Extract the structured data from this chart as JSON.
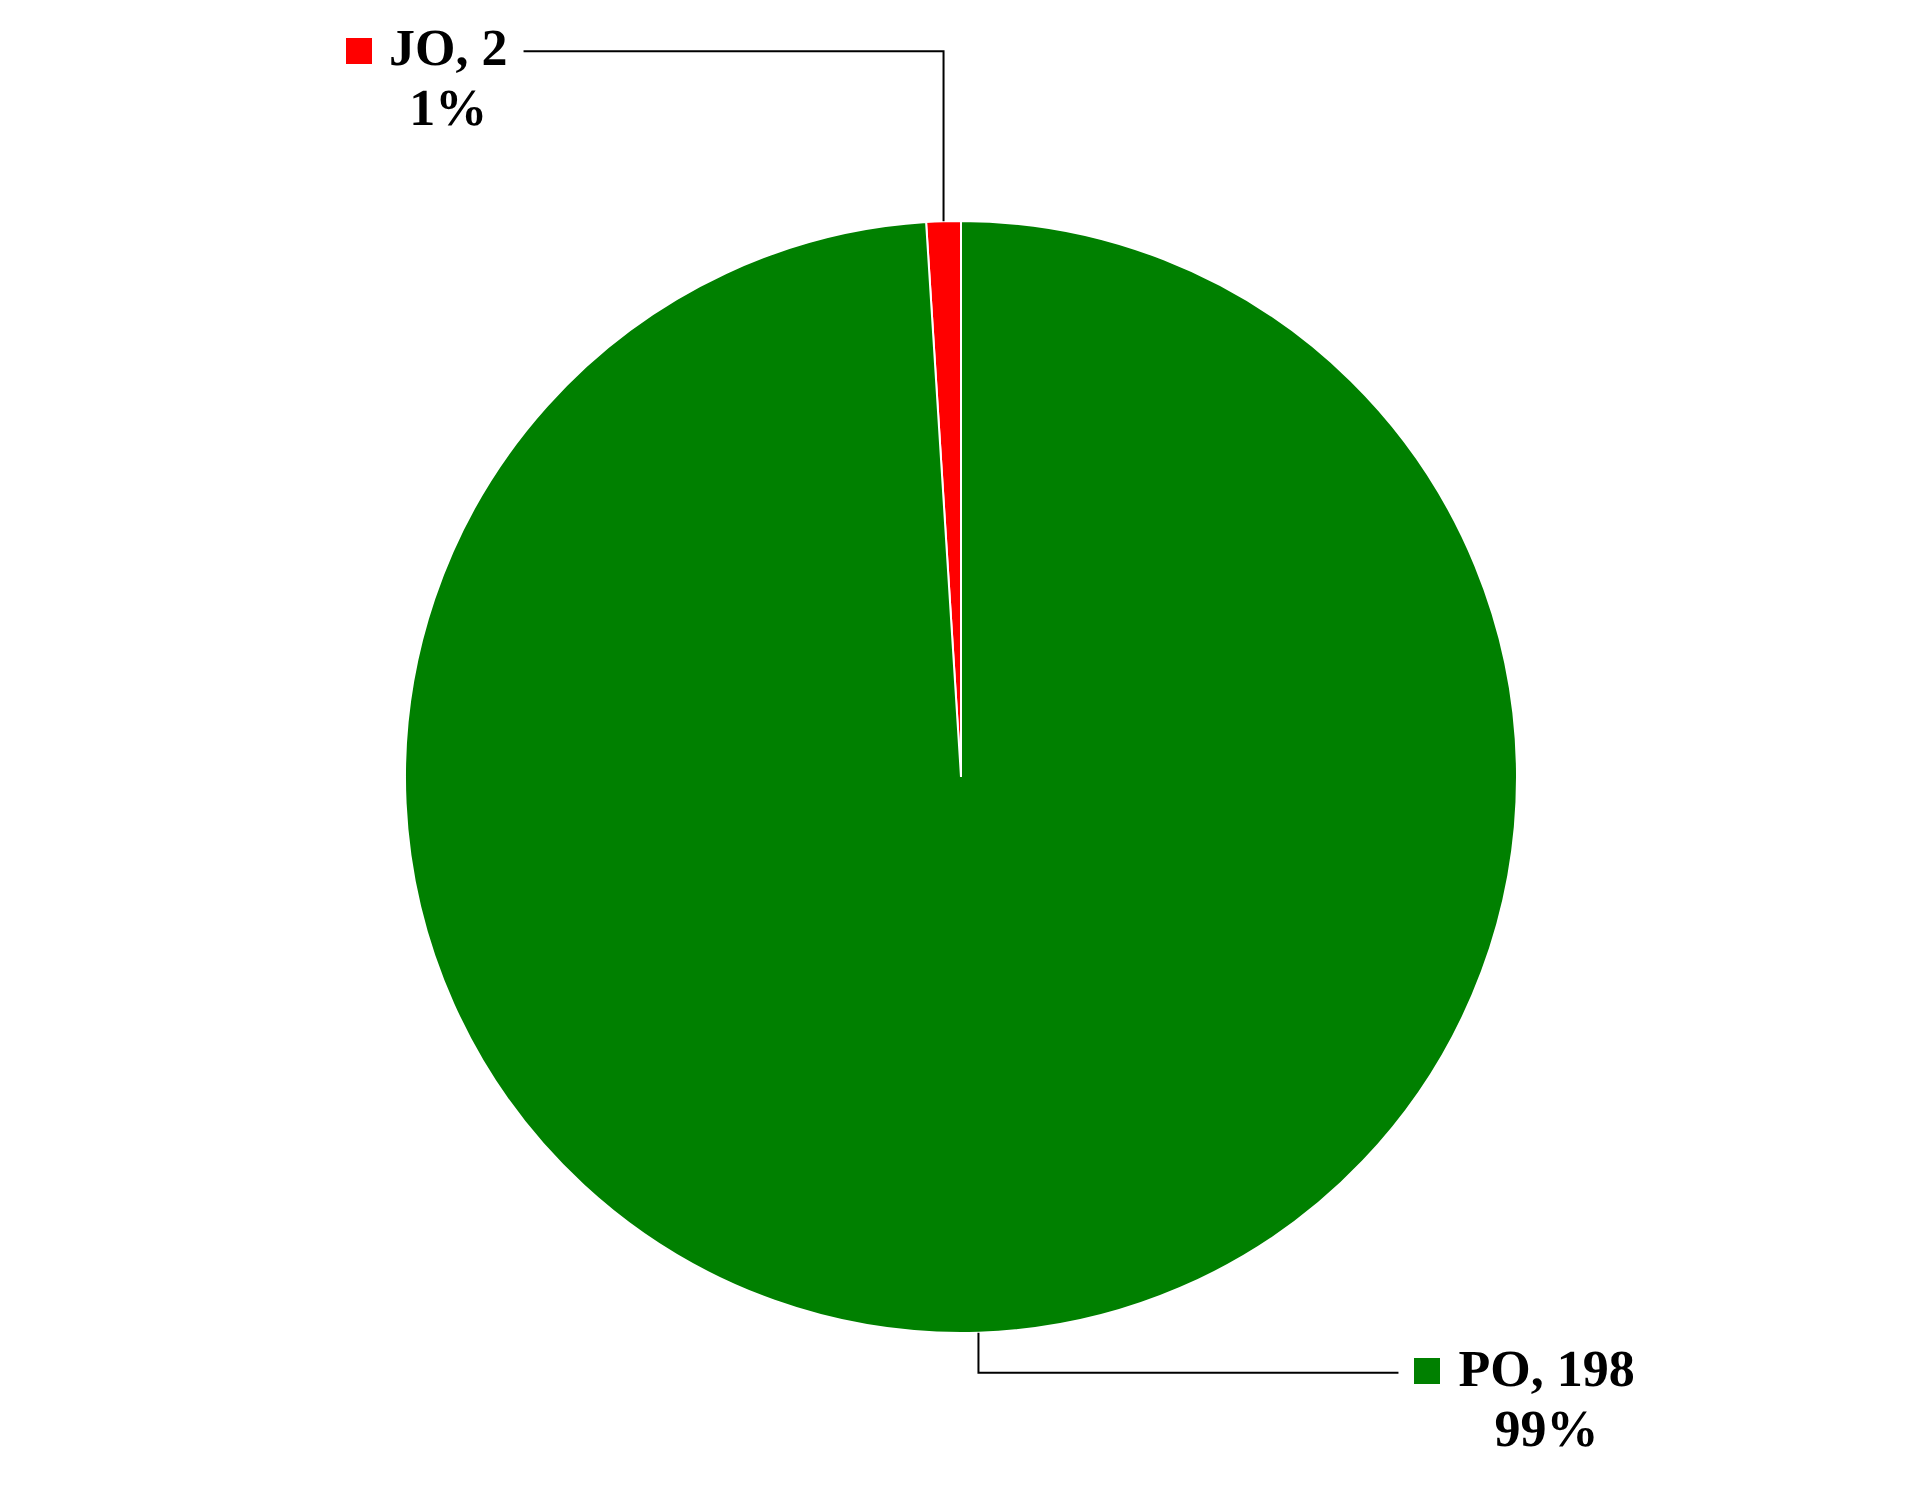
{
  "chart_data": {
    "type": "pie",
    "categories": [
      "JO",
      "PO"
    ],
    "values": [
      2,
      198
    ],
    "colors": [
      "#ff0000",
      "#008000"
    ],
    "value_labels": [
      ", 2\n1%",
      ", 198\n99%"
    ],
    "legend": "right"
  }
}
